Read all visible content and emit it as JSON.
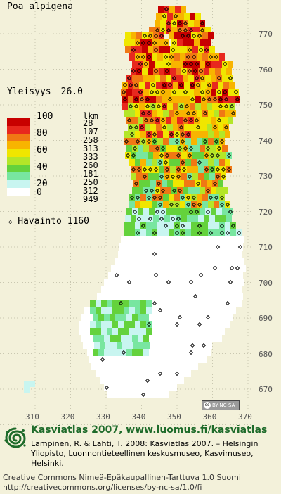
{
  "title": "Poa alpigena",
  "frequency": {
    "label": "Yleisyys",
    "value": "26.0"
  },
  "legend": {
    "count_header": "lkm",
    "classes": [
      {
        "pct": "100",
        "count": "28",
        "color": "#c80000"
      },
      {
        "pct": "",
        "count": "107",
        "color": "#e8281e"
      },
      {
        "pct": "80",
        "count": "258",
        "color": "#f07814"
      },
      {
        "pct": "",
        "count": "313",
        "color": "#f8b400"
      },
      {
        "pct": "60",
        "count": "333",
        "color": "#f0e600"
      },
      {
        "pct": "",
        "count": "260",
        "color": "#b4e628"
      },
      {
        "pct": "40",
        "count": "181",
        "color": "#64d23c"
      },
      {
        "pct": "",
        "count": "250",
        "color": "#78e6a0"
      },
      {
        "pct": "20",
        "count": "312",
        "color": "#c8f5f0"
      },
      {
        "pct": "0",
        "count": "949",
        "color": "#ffffff"
      }
    ]
  },
  "observations": {
    "label": "Havainto",
    "value": "1160"
  },
  "y_ticks": [
    "770",
    "760",
    "750",
    "740",
    "730",
    "720",
    "710",
    "700",
    "690",
    "680",
    "670"
  ],
  "x_ticks": [
    "310",
    "320",
    "330",
    "340",
    "350",
    "360",
    "370"
  ],
  "license_badge": "BY-NC-SA",
  "brand": "Kasviatlas 2007, www.luomus.fi/kasviatlas",
  "citation": "Lampinen, R. & Lahti, T. 2008: Kasviatlas 2007. – Helsingin Yliopisto, Luonnontieteellinen keskusmuseo, Kasvimuseo, Helsinki.",
  "license_line1": "Creative Commons Nimeä-Epäkaupallinen-Tarttuva 1.0 Suomi",
  "license_line2": "http://creativecommons.org/licenses/by-nc-sa/1.0/fi"
}
